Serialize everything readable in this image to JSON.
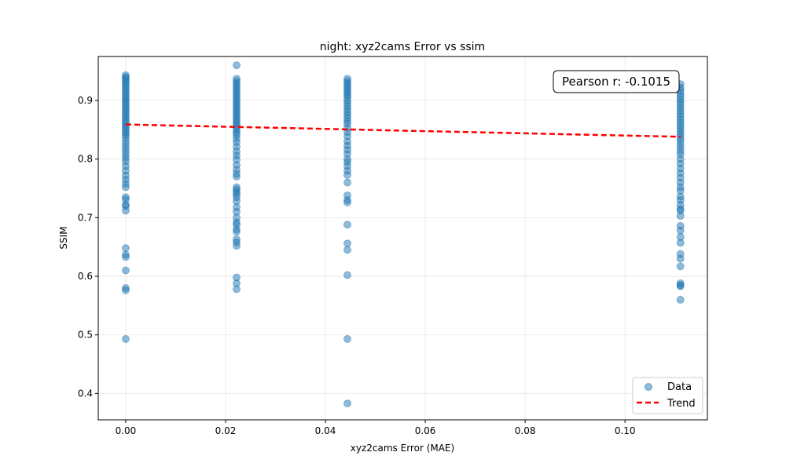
{
  "chart_data": {
    "type": "scatter",
    "title": "night: xyz2cams Error vs ssim",
    "xlabel": "xyz2cams Error (MAE)",
    "ylabel": "SSIM",
    "xlim": [
      -0.0055,
      0.1165
    ],
    "ylim": [
      0.355,
      0.975
    ],
    "xticks": [
      0.0,
      0.02,
      0.04,
      0.06,
      0.08,
      0.1
    ],
    "xtick_labels": [
      "0.00",
      "0.02",
      "0.04",
      "0.06",
      "0.08",
      "0.10"
    ],
    "yticks": [
      0.4,
      0.5,
      0.6,
      0.7,
      0.8,
      0.9
    ],
    "ytick_labels": [
      "0.4",
      "0.5",
      "0.6",
      "0.7",
      "0.8",
      "0.9"
    ],
    "grid": true,
    "legend_position": "lower right",
    "annotation": "Pearson r: -0.1015",
    "series": [
      {
        "name": "Data",
        "color": "#1f77b4",
        "marker": "circle",
        "points": [
          [
            0,
            0.943
          ],
          [
            0,
            0.94
          ],
          [
            0,
            0.937
          ],
          [
            0,
            0.933
          ],
          [
            0,
            0.93
          ],
          [
            0,
            0.926
          ],
          [
            0,
            0.922
          ],
          [
            0,
            0.918
          ],
          [
            0,
            0.914
          ],
          [
            0,
            0.91
          ],
          [
            0,
            0.906
          ],
          [
            0,
            0.902
          ],
          [
            0,
            0.898
          ],
          [
            0,
            0.894
          ],
          [
            0,
            0.89
          ],
          [
            0,
            0.886
          ],
          [
            0,
            0.882
          ],
          [
            0,
            0.878
          ],
          [
            0,
            0.874
          ],
          [
            0,
            0.87
          ],
          [
            0,
            0.866
          ],
          [
            0,
            0.862
          ],
          [
            0,
            0.858
          ],
          [
            0,
            0.854
          ],
          [
            0,
            0.85
          ],
          [
            0,
            0.846
          ],
          [
            0,
            0.842
          ],
          [
            0,
            0.838
          ],
          [
            0,
            0.832
          ],
          [
            0,
            0.826
          ],
          [
            0,
            0.82
          ],
          [
            0,
            0.814
          ],
          [
            0,
            0.808
          ],
          [
            0,
            0.802
          ],
          [
            0,
            0.796
          ],
          [
            0,
            0.788
          ],
          [
            0,
            0.78
          ],
          [
            0,
            0.772
          ],
          [
            0,
            0.765
          ],
          [
            0,
            0.758
          ],
          [
            0,
            0.752
          ],
          [
            0,
            0.735
          ],
          [
            0,
            0.731
          ],
          [
            0,
            0.722
          ],
          [
            0,
            0.72
          ],
          [
            0,
            0.712
          ],
          [
            0,
            0.648
          ],
          [
            0,
            0.637
          ],
          [
            0,
            0.633
          ],
          [
            0,
            0.61
          ],
          [
            0,
            0.58
          ],
          [
            0,
            0.576
          ],
          [
            0,
            0.493
          ],
          [
            0.0222,
            0.96
          ],
          [
            0.0222,
            0.937
          ],
          [
            0.0222,
            0.933
          ],
          [
            0.0222,
            0.929
          ],
          [
            0.0222,
            0.925
          ],
          [
            0.0222,
            0.921
          ],
          [
            0.0222,
            0.917
          ],
          [
            0.0222,
            0.913
          ],
          [
            0.0222,
            0.909
          ],
          [
            0.0222,
            0.905
          ],
          [
            0.0222,
            0.901
          ],
          [
            0.0222,
            0.897
          ],
          [
            0.0222,
            0.893
          ],
          [
            0.0222,
            0.889
          ],
          [
            0.0222,
            0.885
          ],
          [
            0.0222,
            0.881
          ],
          [
            0.0222,
            0.877
          ],
          [
            0.0222,
            0.873
          ],
          [
            0.0222,
            0.869
          ],
          [
            0.0222,
            0.865
          ],
          [
            0.0222,
            0.861
          ],
          [
            0.0222,
            0.857
          ],
          [
            0.0222,
            0.853
          ],
          [
            0.0222,
            0.849
          ],
          [
            0.0222,
            0.845
          ],
          [
            0.0222,
            0.841
          ],
          [
            0.0222,
            0.835
          ],
          [
            0.0222,
            0.829
          ],
          [
            0.0222,
            0.821
          ],
          [
            0.0222,
            0.813
          ],
          [
            0.0222,
            0.806
          ],
          [
            0.0222,
            0.799
          ],
          [
            0.0222,
            0.79
          ],
          [
            0.0222,
            0.782
          ],
          [
            0.0222,
            0.775
          ],
          [
            0.0222,
            0.77
          ],
          [
            0.0222,
            0.752
          ],
          [
            0.0222,
            0.748
          ],
          [
            0.0222,
            0.744
          ],
          [
            0.0222,
            0.74
          ],
          [
            0.0222,
            0.735
          ],
          [
            0.0222,
            0.728
          ],
          [
            0.0222,
            0.718
          ],
          [
            0.0222,
            0.71
          ],
          [
            0.0222,
            0.7
          ],
          [
            0.0222,
            0.692
          ],
          [
            0.0222,
            0.688
          ],
          [
            0.0222,
            0.68
          ],
          [
            0.0222,
            0.676
          ],
          [
            0.0222,
            0.663
          ],
          [
            0.0222,
            0.658
          ],
          [
            0.0222,
            0.652
          ],
          [
            0.0222,
            0.598
          ],
          [
            0.0222,
            0.588
          ],
          [
            0.0222,
            0.578
          ],
          [
            0.0444,
            0.937
          ],
          [
            0.0444,
            0.933
          ],
          [
            0.0444,
            0.929
          ],
          [
            0.0444,
            0.925
          ],
          [
            0.0444,
            0.921
          ],
          [
            0.0444,
            0.917
          ],
          [
            0.0444,
            0.913
          ],
          [
            0.0444,
            0.909
          ],
          [
            0.0444,
            0.905
          ],
          [
            0.0444,
            0.9
          ],
          [
            0.0444,
            0.895
          ],
          [
            0.0444,
            0.89
          ],
          [
            0.0444,
            0.885
          ],
          [
            0.0444,
            0.88
          ],
          [
            0.0444,
            0.875
          ],
          [
            0.0444,
            0.87
          ],
          [
            0.0444,
            0.865
          ],
          [
            0.0444,
            0.86
          ],
          [
            0.0444,
            0.853
          ],
          [
            0.0444,
            0.846
          ],
          [
            0.0444,
            0.839
          ],
          [
            0.0444,
            0.83
          ],
          [
            0.0444,
            0.823
          ],
          [
            0.0444,
            0.816
          ],
          [
            0.0444,
            0.809
          ],
          [
            0.0444,
            0.8
          ],
          [
            0.0444,
            0.795
          ],
          [
            0.0444,
            0.788
          ],
          [
            0.0444,
            0.78
          ],
          [
            0.0444,
            0.773
          ],
          [
            0.0444,
            0.76
          ],
          [
            0.0444,
            0.738
          ],
          [
            0.0444,
            0.73
          ],
          [
            0.0444,
            0.726
          ],
          [
            0.0444,
            0.688
          ],
          [
            0.0444,
            0.656
          ],
          [
            0.0444,
            0.645
          ],
          [
            0.0444,
            0.602
          ],
          [
            0.0444,
            0.493
          ],
          [
            0.0444,
            0.383
          ],
          [
            0.1111,
            0.928
          ],
          [
            0.1111,
            0.922
          ],
          [
            0.1111,
            0.917
          ],
          [
            0.1111,
            0.912
          ],
          [
            0.1111,
            0.907
          ],
          [
            0.1111,
            0.902
          ],
          [
            0.1111,
            0.897
          ],
          [
            0.1111,
            0.892
          ],
          [
            0.1111,
            0.887
          ],
          [
            0.1111,
            0.882
          ],
          [
            0.1111,
            0.877
          ],
          [
            0.1111,
            0.872
          ],
          [
            0.1111,
            0.867
          ],
          [
            0.1111,
            0.862
          ],
          [
            0.1111,
            0.857
          ],
          [
            0.1111,
            0.852
          ],
          [
            0.1111,
            0.847
          ],
          [
            0.1111,
            0.842
          ],
          [
            0.1111,
            0.837
          ],
          [
            0.1111,
            0.832
          ],
          [
            0.1111,
            0.826
          ],
          [
            0.1111,
            0.82
          ],
          [
            0.1111,
            0.814
          ],
          [
            0.1111,
            0.808
          ],
          [
            0.1111,
            0.8
          ],
          [
            0.1111,
            0.792
          ],
          [
            0.1111,
            0.784
          ],
          [
            0.1111,
            0.776
          ],
          [
            0.1111,
            0.768
          ],
          [
            0.1111,
            0.76
          ],
          [
            0.1111,
            0.752
          ],
          [
            0.1111,
            0.746
          ],
          [
            0.1111,
            0.736
          ],
          [
            0.1111,
            0.73
          ],
          [
            0.1111,
            0.722
          ],
          [
            0.1111,
            0.715
          ],
          [
            0.1111,
            0.712
          ],
          [
            0.1111,
            0.703
          ],
          [
            0.1111,
            0.686
          ],
          [
            0.1111,
            0.678
          ],
          [
            0.1111,
            0.667
          ],
          [
            0.1111,
            0.657
          ],
          [
            0.1111,
            0.638
          ],
          [
            0.1111,
            0.63
          ],
          [
            0.1111,
            0.617
          ],
          [
            0.1111,
            0.588
          ],
          [
            0.1111,
            0.585
          ],
          [
            0.1111,
            0.583
          ],
          [
            0.1111,
            0.56
          ]
        ]
      },
      {
        "name": "Trend",
        "color": "#ff0000",
        "style": "dashed",
        "points": [
          [
            0,
            0.859
          ],
          [
            0.1111,
            0.838
          ]
        ]
      }
    ]
  }
}
